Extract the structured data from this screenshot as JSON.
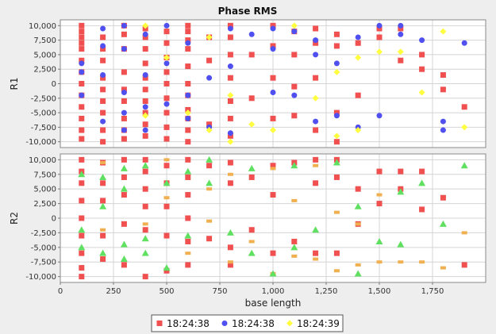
{
  "chart_data": {
    "type": "scatter",
    "title": "Phase RMS",
    "xlabel": "base length",
    "xlim": [
      0,
      2000
    ],
    "x_ticks": [
      0,
      250,
      500,
      750,
      1000,
      1250,
      1500,
      1750
    ],
    "x_tick_labels": [
      "0",
      "250",
      "500",
      "750",
      "1,000",
      "1,250",
      "1,500",
      "1,750"
    ],
    "legend_position": "bottom",
    "grid": true,
    "legend": [
      {
        "name": "18:24:38",
        "color": "#f05050",
        "marker": "square"
      },
      {
        "name": "18:24:38",
        "color": "#5050f0",
        "marker": "circle"
      },
      {
        "name": "18:24:39",
        "color": "#ffff40",
        "marker": "diamond"
      }
    ],
    "panels": [
      {
        "ylabel": "R1",
        "ylim": [
          -11000,
          11000
        ],
        "y_ticks": [
          -10000,
          -7500,
          -5000,
          -2500,
          0,
          2500,
          5000,
          7500,
          10000
        ],
        "y_tick_labels": [
          "-10,000",
          "-7,500",
          "-5,000",
          "-2,500",
          "0",
          "2,500",
          "5,000",
          "7,500",
          "10,000"
        ],
        "series": [
          {
            "name": "18:24:38",
            "color": "#f05050",
            "marker": "square",
            "x": [
              100,
              100,
              100,
              100,
              100,
              100,
              100,
              100,
              100,
              100,
              100,
              100,
              100,
              200,
              200,
              200,
              200,
              200,
              200,
              200,
              200,
              200,
              300,
              300,
              300,
              300,
              300,
              300,
              300,
              300,
              300,
              400,
              400,
              400,
              400,
              400,
              400,
              400,
              400,
              400,
              400,
              500,
              500,
              500,
              500,
              500,
              500,
              500,
              500,
              500,
              600,
              600,
              600,
              600,
              600,
              600,
              600,
              600,
              600,
              600,
              600,
              700,
              700,
              700,
              800,
              800,
              800,
              800,
              800,
              800,
              800,
              900,
              900,
              1000,
              1000,
              1000,
              1000,
              1100,
              1100,
              1100,
              1100,
              1200,
              1200,
              1200,
              1200,
              1300,
              1300,
              1300,
              1300,
              1400,
              1400,
              1500,
              1500,
              1600,
              1600,
              1700,
              1700,
              1800,
              1800,
              1900
            ],
            "y": [
              10000,
              9000,
              8000,
              7000,
              6000,
              4000,
              2000,
              0,
              -2000,
              -4000,
              -6000,
              -8000,
              -9500,
              8000,
              6000,
              4000,
              1000,
              -1000,
              -3000,
              -5000,
              -8000,
              -10000,
              10000,
              8500,
              6000,
              2000,
              -1000,
              -3000,
              -6000,
              -8000,
              -9500,
              9500,
              8000,
              6000,
              3500,
              1000,
              -1000,
              -3000,
              -5000,
              -7000,
              -9000,
              9000,
              7000,
              4500,
              2000,
              0,
              -2500,
              -5000,
              -7500,
              -9500,
              10000,
              9000,
              7500,
              6000,
              3000,
              0,
              -2000,
              -4500,
              -6000,
              -8000,
              -10000,
              8000,
              4000,
              -7000,
              10000,
              8000,
              5000,
              1000,
              -3000,
              -6000,
              -9000,
              5000,
              -2500,
              10000,
              6500,
              1000,
              -6000,
              9000,
              5000,
              -500,
              -5500,
              9500,
              7000,
              1000,
              -8000,
              8500,
              6500,
              -5000,
              -10000,
              7000,
              -2000,
              9500,
              8000,
              9500,
              4000,
              5000,
              2500,
              1500,
              -1000,
              -4000
            ],
            "note": ""
          },
          {
            "name": "18:24:38",
            "color": "#5050f0",
            "marker": "circle",
            "x": [
              100,
              100,
              100,
              200,
              200,
              200,
              200,
              300,
              300,
              300,
              300,
              300,
              400,
              400,
              400,
              400,
              500,
              500,
              500,
              600,
              600,
              600,
              700,
              700,
              800,
              800,
              800,
              900,
              1000,
              1000,
              1000,
              1100,
              1100,
              1200,
              1200,
              1200,
              1300,
              1300,
              1400,
              1400,
              1500,
              1500,
              1600,
              1600,
              1700,
              1800,
              1800,
              1900
            ],
            "y": [
              3500,
              2000,
              -2000,
              9500,
              6500,
              1500,
              -6500,
              10000,
              6000,
              -1500,
              -5000,
              -8000,
              8500,
              1500,
              -4000,
              -8000,
              10000,
              3500,
              -3500,
              7000,
              -2000,
              -6000,
              1000,
              -7500,
              9500,
              3000,
              -8500,
              8500,
              9500,
              6000,
              -1500,
              9000,
              -2000,
              7500,
              5000,
              -6500,
              3500,
              -5500,
              8000,
              -7500,
              10000,
              -5500,
              10000,
              8500,
              7500,
              -6500,
              -8000,
              7000
            ]
          },
          {
            "name": "18:24:39",
            "color": "#ffff40",
            "marker": "diamond",
            "x": [
              400,
              400,
              500,
              600,
              700,
              700,
              800,
              800,
              900,
              1000,
              1100,
              1200,
              1300,
              1300,
              1400,
              1400,
              1500,
              1600,
              1700,
              1800,
              1900
            ],
            "y": [
              10000,
              -5500,
              4500,
              -5000,
              8000,
              -8000,
              -2000,
              -10000,
              -7000,
              -8000,
              10000,
              -2500,
              -9000,
              2000,
              4500,
              -8000,
              5500,
              5500,
              -1500,
              9000,
              -7500
            ]
          }
        ]
      },
      {
        "ylabel": "R2",
        "ylim": [
          -11000,
          11000
        ],
        "y_ticks": [
          -10000,
          -7500,
          -5000,
          -2500,
          0,
          2500,
          5000,
          7500,
          10000
        ],
        "y_tick_labels": [
          "-10,000",
          "-7,500",
          "-5,000",
          "-2,500",
          "0",
          "2,500",
          "5,000",
          "7,500",
          "10,000"
        ],
        "series": [
          {
            "name": "18:24:38",
            "color": "#f05050",
            "marker": "square",
            "x": [
              100,
              100,
              100,
              100,
              100,
              100,
              100,
              100,
              100,
              200,
              200,
              200,
              200,
              200,
              300,
              300,
              300,
              300,
              300,
              400,
              400,
              400,
              400,
              400,
              400,
              500,
              500,
              500,
              500,
              500,
              600,
              600,
              600,
              600,
              600,
              600,
              700,
              700,
              800,
              800,
              800,
              800,
              900,
              900,
              1000,
              1000,
              1000,
              1100,
              1100,
              1200,
              1200,
              1200,
              1300,
              1300,
              1300,
              1400,
              1400,
              1500,
              1500,
              1600,
              1600,
              1700,
              1700,
              1800,
              1900
            ],
            "y": [
              10000,
              8000,
              6000,
              3000,
              0,
              -3000,
              -6000,
              -8500,
              -10000,
              9500,
              6000,
              3000,
              -3000,
              -7000,
              10000,
              7000,
              4000,
              -1000,
              -8000,
              10000,
              8000,
              5000,
              2000,
              -2000,
              -10000,
              9000,
              6000,
              2000,
              -3000,
              -9000,
              10000,
              7000,
              4000,
              0,
              -4000,
              -8000,
              9000,
              -3500,
              9500,
              6000,
              -5000,
              -8000,
              7000,
              -2000,
              9000,
              4000,
              -6000,
              9500,
              -4000,
              10000,
              6000,
              -6000,
              10000,
              7000,
              -6000,
              -1000,
              5000,
              8000,
              2500,
              8000,
              5000,
              8000,
              1500,
              3500,
              -8000
            ]
          },
          {
            "name": "18:24:38",
            "color": "#f0b050",
            "marker": "rect",
            "x": [
              200,
              200,
              400,
              500,
              500,
              600,
              700,
              700,
              800,
              800,
              900,
              1000,
              1000,
              1100,
              1100,
              1200,
              1200,
              1300,
              1300,
              1400,
              1400,
              1500,
              1500,
              1600,
              1700,
              1800,
              1900
            ],
            "y": [
              9500,
              -2000,
              -1000,
              10000,
              3500,
              -6000,
              -500,
              5000,
              7500,
              -7500,
              -4000,
              8500,
              -9500,
              3000,
              -6500,
              9000,
              -7000,
              -9000,
              1000,
              -1000,
              -8000,
              4000,
              -7500,
              -7500,
              -7500,
              -8500,
              -2500
            ]
          },
          {
            "name": "18:24:39",
            "color": "#60e060",
            "marker": "triangle",
            "x": [
              100,
              100,
              100,
              200,
              200,
              200,
              300,
              300,
              300,
              300,
              400,
              400,
              400,
              500,
              500,
              600,
              600,
              700,
              700,
              800,
              900,
              900,
              1000,
              1100,
              1100,
              1200,
              1300,
              1400,
              1400,
              1500,
              1600,
              1600,
              1700,
              1800,
              1900
            ],
            "y": [
              7500,
              -2000,
              -5000,
              7000,
              2000,
              -6000,
              8500,
              5000,
              -4500,
              -7000,
              9000,
              -3500,
              -6000,
              6000,
              -8500,
              8000,
              -3000,
              10000,
              6000,
              -2500,
              8500,
              -6000,
              -9500,
              9000,
              -5000,
              -2000,
              9500,
              -9500,
              2000,
              -4000,
              4500,
              -4500,
              6000,
              -1000,
              9000
            ]
          }
        ]
      }
    ]
  }
}
